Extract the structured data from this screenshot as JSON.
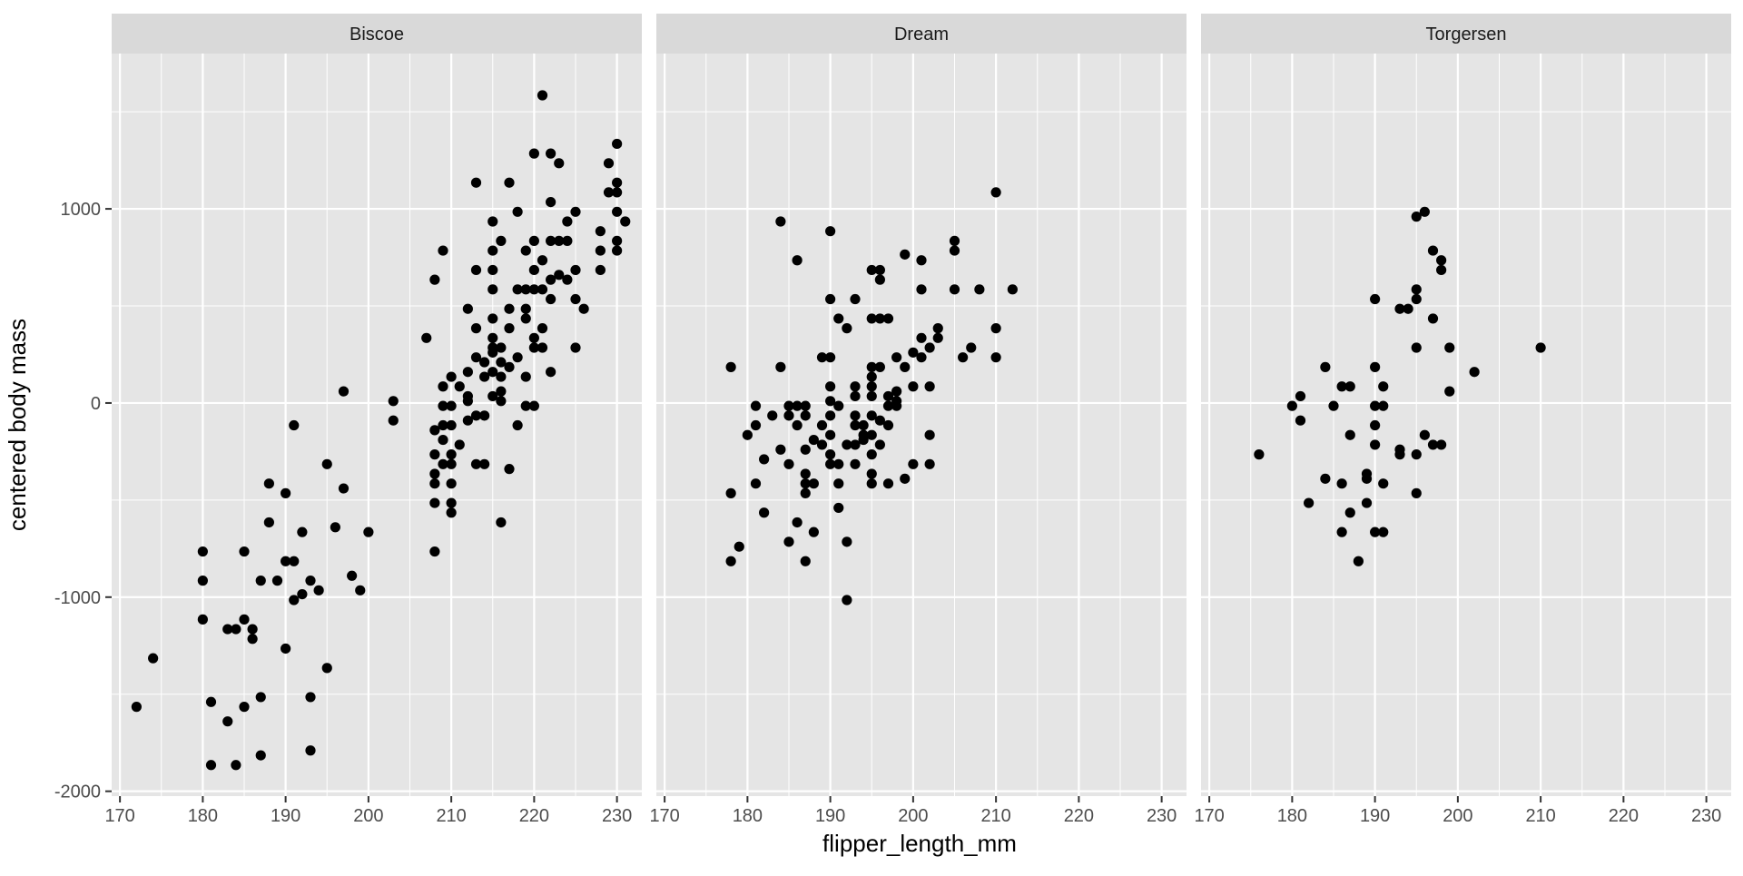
{
  "chart_data": {
    "type": "scatter",
    "facet_by": "island",
    "xlabel": "flipper_length_mm",
    "ylabel": "centered body mass",
    "xlim": [
      169,
      233
    ],
    "ylim": [
      -2025,
      1800
    ],
    "x_ticks": [
      170,
      180,
      190,
      200,
      210,
      220,
      230
    ],
    "y_ticks": [
      1000,
      0,
      -1000,
      -2000
    ],
    "y_tick_labels": [
      "1000",
      "0",
      "-1000",
      "-2000"
    ],
    "grid": true,
    "colors": {
      "panel_bg": "#e5e5e5",
      "strip_bg": "#d9d9d9",
      "grid": "#ffffff",
      "point": "#000000"
    },
    "panels": [
      {
        "name": "Biscoe",
        "points": [
          [
            172,
            -1565
          ],
          [
            174,
            -1315
          ],
          [
            180,
            -765
          ],
          [
            180,
            -915
          ],
          [
            180,
            -1115
          ],
          [
            181,
            -1540
          ],
          [
            181,
            -1865
          ],
          [
            183,
            -1165
          ],
          [
            183,
            -1640
          ],
          [
            184,
            -1165
          ],
          [
            184,
            -1865
          ],
          [
            185,
            -765
          ],
          [
            185,
            -1115
          ],
          [
            185,
            -1565
          ],
          [
            186,
            -1165
          ],
          [
            186,
            -1215
          ],
          [
            187,
            -915
          ],
          [
            187,
            -1515
          ],
          [
            187,
            -1815
          ],
          [
            188,
            -415
          ],
          [
            188,
            -615
          ],
          [
            189,
            -915
          ],
          [
            190,
            -465
          ],
          [
            190,
            -815
          ],
          [
            190,
            -1265
          ],
          [
            191,
            -815
          ],
          [
            191,
            -1015
          ],
          [
            191,
            -115
          ],
          [
            192,
            -665
          ],
          [
            192,
            -985
          ],
          [
            193,
            -915
          ],
          [
            193,
            -1515
          ],
          [
            193,
            -1790
          ],
          [
            194,
            -965
          ],
          [
            195,
            -315
          ],
          [
            195,
            -1365
          ],
          [
            196,
            -640
          ],
          [
            197,
            -440
          ],
          [
            197,
            60
          ],
          [
            198,
            -890
          ],
          [
            199,
            -965
          ],
          [
            200,
            -665
          ],
          [
            203,
            10
          ],
          [
            203,
            -90
          ],
          [
            207,
            335
          ],
          [
            208,
            635
          ],
          [
            208,
            -140
          ],
          [
            208,
            -265
          ],
          [
            208,
            -365
          ],
          [
            208,
            -415
          ],
          [
            208,
            -515
          ],
          [
            208,
            -765
          ],
          [
            209,
            785
          ],
          [
            209,
            85
          ],
          [
            209,
            -15
          ],
          [
            209,
            -115
          ],
          [
            209,
            -190
          ],
          [
            209,
            -315
          ],
          [
            210,
            135
          ],
          [
            210,
            -15
          ],
          [
            210,
            -115
          ],
          [
            210,
            -265
          ],
          [
            210,
            -315
          ],
          [
            210,
            -415
          ],
          [
            210,
            -515
          ],
          [
            210,
            -565
          ],
          [
            211,
            85
          ],
          [
            211,
            -215
          ],
          [
            212,
            485
          ],
          [
            212,
            160
          ],
          [
            212,
            35
          ],
          [
            212,
            10
          ],
          [
            212,
            -90
          ],
          [
            213,
            1135
          ],
          [
            213,
            685
          ],
          [
            213,
            385
          ],
          [
            213,
            235
          ],
          [
            213,
            -65
          ],
          [
            213,
            -315
          ],
          [
            214,
            210
          ],
          [
            214,
            135
          ],
          [
            214,
            -65
          ],
          [
            214,
            -315
          ],
          [
            215,
            935
          ],
          [
            215,
            785
          ],
          [
            215,
            685
          ],
          [
            215,
            585
          ],
          [
            215,
            435
          ],
          [
            215,
            335
          ],
          [
            215,
            285
          ],
          [
            215,
            260
          ],
          [
            215,
            160
          ],
          [
            215,
            35
          ],
          [
            216,
            835
          ],
          [
            216,
            285
          ],
          [
            216,
            210
          ],
          [
            216,
            135
          ],
          [
            216,
            60
          ],
          [
            216,
            10
          ],
          [
            216,
            -615
          ],
          [
            217,
            1135
          ],
          [
            217,
            485
          ],
          [
            217,
            385
          ],
          [
            217,
            185
          ],
          [
            217,
            -340
          ],
          [
            218,
            985
          ],
          [
            218,
            585
          ],
          [
            218,
            235
          ],
          [
            218,
            -115
          ],
          [
            219,
            785
          ],
          [
            219,
            585
          ],
          [
            219,
            485
          ],
          [
            219,
            435
          ],
          [
            219,
            135
          ],
          [
            219,
            -15
          ],
          [
            220,
            1285
          ],
          [
            220,
            835
          ],
          [
            220,
            685
          ],
          [
            220,
            585
          ],
          [
            220,
            335
          ],
          [
            220,
            285
          ],
          [
            220,
            -15
          ],
          [
            221,
            1585
          ],
          [
            221,
            735
          ],
          [
            221,
            585
          ],
          [
            221,
            385
          ],
          [
            221,
            285
          ],
          [
            222,
            1285
          ],
          [
            222,
            1035
          ],
          [
            222,
            835
          ],
          [
            222,
            635
          ],
          [
            222,
            535
          ],
          [
            222,
            160
          ],
          [
            223,
            1235
          ],
          [
            223,
            835
          ],
          [
            223,
            660
          ],
          [
            224,
            935
          ],
          [
            224,
            835
          ],
          [
            224,
            635
          ],
          [
            225,
            985
          ],
          [
            225,
            685
          ],
          [
            225,
            535
          ],
          [
            225,
            285
          ],
          [
            226,
            485
          ],
          [
            228,
            885
          ],
          [
            228,
            785
          ],
          [
            228,
            685
          ],
          [
            229,
            1235
          ],
          [
            229,
            1085
          ],
          [
            230,
            1335
          ],
          [
            230,
            1135
          ],
          [
            230,
            1085
          ],
          [
            230,
            985
          ],
          [
            230,
            835
          ],
          [
            230,
            785
          ],
          [
            231,
            935
          ]
        ]
      },
      {
        "name": "Dream",
        "points": [
          [
            178,
            -815
          ],
          [
            178,
            -465
          ],
          [
            178,
            185
          ],
          [
            179,
            -740
          ],
          [
            180,
            -165
          ],
          [
            181,
            -415
          ],
          [
            181,
            -115
          ],
          [
            181,
            -15
          ],
          [
            182,
            -565
          ],
          [
            182,
            -290
          ],
          [
            183,
            -65
          ],
          [
            184,
            935
          ],
          [
            184,
            -240
          ],
          [
            184,
            185
          ],
          [
            185,
            -715
          ],
          [
            185,
            -315
          ],
          [
            185,
            -15
          ],
          [
            185,
            -65
          ],
          [
            186,
            735
          ],
          [
            186,
            -615
          ],
          [
            186,
            -115
          ],
          [
            186,
            -15
          ],
          [
            187,
            -815
          ],
          [
            187,
            -465
          ],
          [
            187,
            -415
          ],
          [
            187,
            -365
          ],
          [
            187,
            -240
          ],
          [
            187,
            -65
          ],
          [
            187,
            -15
          ],
          [
            188,
            -665
          ],
          [
            188,
            -415
          ],
          [
            188,
            -190
          ],
          [
            189,
            -115
          ],
          [
            189,
            -215
          ],
          [
            189,
            235
          ],
          [
            190,
            885
          ],
          [
            190,
            535
          ],
          [
            190,
            235
          ],
          [
            190,
            85
          ],
          [
            190,
            10
          ],
          [
            190,
            -65
          ],
          [
            190,
            -165
          ],
          [
            190,
            -265
          ],
          [
            190,
            -315
          ],
          [
            191,
            435
          ],
          [
            191,
            -15
          ],
          [
            191,
            -315
          ],
          [
            191,
            -415
          ],
          [
            191,
            -540
          ],
          [
            192,
            385
          ],
          [
            192,
            -1015
          ],
          [
            192,
            -715
          ],
          [
            192,
            -215
          ],
          [
            193,
            535
          ],
          [
            193,
            85
          ],
          [
            193,
            35
          ],
          [
            193,
            -65
          ],
          [
            193,
            -115
          ],
          [
            193,
            -215
          ],
          [
            193,
            -315
          ],
          [
            194,
            -115
          ],
          [
            194,
            -190
          ],
          [
            194,
            -165
          ],
          [
            195,
            685
          ],
          [
            195,
            435
          ],
          [
            195,
            185
          ],
          [
            195,
            135
          ],
          [
            195,
            85
          ],
          [
            195,
            35
          ],
          [
            195,
            -65
          ],
          [
            195,
            -165
          ],
          [
            195,
            -265
          ],
          [
            195,
            -365
          ],
          [
            195,
            -415
          ],
          [
            196,
            685
          ],
          [
            196,
            635
          ],
          [
            196,
            435
          ],
          [
            196,
            185
          ],
          [
            196,
            -90
          ],
          [
            196,
            -215
          ],
          [
            197,
            435
          ],
          [
            197,
            35
          ],
          [
            197,
            -15
          ],
          [
            197,
            -115
          ],
          [
            197,
            -415
          ],
          [
            198,
            235
          ],
          [
            198,
            60
          ],
          [
            198,
            10
          ],
          [
            198,
            -15
          ],
          [
            199,
            765
          ],
          [
            199,
            185
          ],
          [
            199,
            -390
          ],
          [
            200,
            260
          ],
          [
            200,
            85
          ],
          [
            200,
            -315
          ],
          [
            201,
            735
          ],
          [
            201,
            585
          ],
          [
            201,
            335
          ],
          [
            201,
            235
          ],
          [
            202,
            285
          ],
          [
            202,
            85
          ],
          [
            202,
            -165
          ],
          [
            202,
            -315
          ],
          [
            203,
            385
          ],
          [
            203,
            335
          ],
          [
            205,
            835
          ],
          [
            205,
            785
          ],
          [
            205,
            585
          ],
          [
            206,
            235
          ],
          [
            207,
            285
          ],
          [
            208,
            585
          ],
          [
            210,
            1085
          ],
          [
            210,
            385
          ],
          [
            210,
            235
          ],
          [
            212,
            585
          ]
        ]
      },
      {
        "name": "Torgersen",
        "points": [
          [
            176,
            -265
          ],
          [
            180,
            -15
          ],
          [
            181,
            35
          ],
          [
            181,
            -90
          ],
          [
            182,
            -515
          ],
          [
            184,
            185
          ],
          [
            184,
            -390
          ],
          [
            185,
            -15
          ],
          [
            186,
            85
          ],
          [
            186,
            -415
          ],
          [
            186,
            -665
          ],
          [
            187,
            85
          ],
          [
            187,
            -165
          ],
          [
            187,
            -565
          ],
          [
            188,
            -815
          ],
          [
            189,
            -365
          ],
          [
            189,
            -515
          ],
          [
            189,
            -390
          ],
          [
            190,
            535
          ],
          [
            190,
            185
          ],
          [
            190,
            -15
          ],
          [
            190,
            -115
          ],
          [
            190,
            -215
          ],
          [
            190,
            -665
          ],
          [
            191,
            85
          ],
          [
            191,
            -15
          ],
          [
            191,
            -415
          ],
          [
            191,
            -665
          ],
          [
            193,
            485
          ],
          [
            193,
            -240
          ],
          [
            193,
            -265
          ],
          [
            194,
            485
          ],
          [
            195,
            585
          ],
          [
            195,
            535
          ],
          [
            195,
            285
          ],
          [
            195,
            -265
          ],
          [
            195,
            -465
          ],
          [
            195,
            960
          ],
          [
            196,
            985
          ],
          [
            196,
            -165
          ],
          [
            197,
            785
          ],
          [
            197,
            435
          ],
          [
            197,
            -215
          ],
          [
            198,
            735
          ],
          [
            198,
            685
          ],
          [
            198,
            -215
          ],
          [
            199,
            285
          ],
          [
            199,
            60
          ],
          [
            202,
            160
          ],
          [
            210,
            285
          ]
        ]
      }
    ]
  }
}
